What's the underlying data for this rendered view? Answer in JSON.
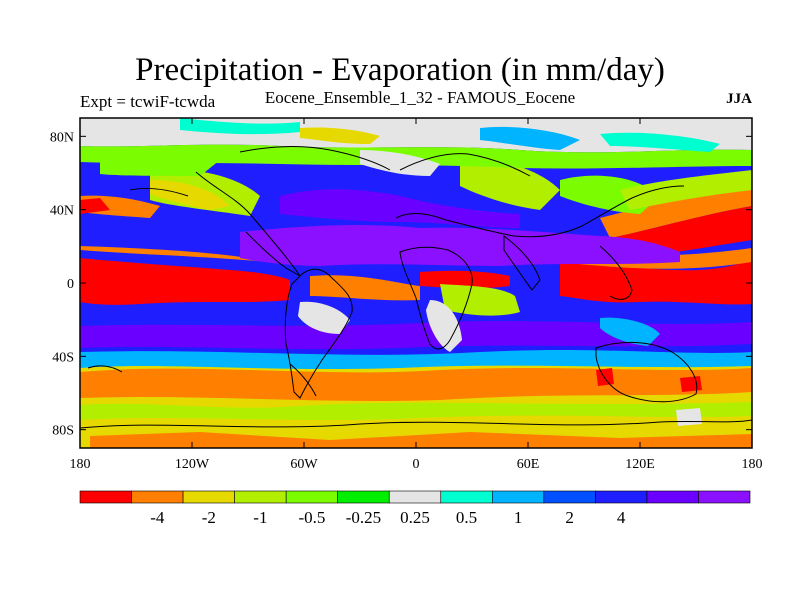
{
  "title": "Precipitation - Evaporation (in mm/day)",
  "subtitle_left": "Expt = tcwiF-tcwda",
  "subtitle_center": "Eocene_Ensemble_1_32 - FAMOUS_Eocene",
  "subtitle_right": "JJA",
  "map": {
    "projection": "cylindrical equidistant",
    "lon_range": [
      -180,
      180
    ],
    "lat_range": [
      -90,
      90
    ],
    "x_ticks": [
      {
        "lon": -180,
        "label": "180"
      },
      {
        "lon": -120,
        "label": "120W"
      },
      {
        "lon": -60,
        "label": "60W"
      },
      {
        "lon": 0,
        "label": "0"
      },
      {
        "lon": 60,
        "label": "60E"
      },
      {
        "lon": 120,
        "label": "120E"
      },
      {
        "lon": 180,
        "label": "180"
      }
    ],
    "y_ticks": [
      {
        "lat": 80,
        "label": "80N"
      },
      {
        "lat": 40,
        "label": "40N"
      },
      {
        "lat": 0,
        "label": "0"
      },
      {
        "lat": -40,
        "label": "40S"
      },
      {
        "lat": -80,
        "label": "80S"
      }
    ]
  },
  "colorbar": {
    "colors": [
      "#ff0000",
      "#ff7f00",
      "#e6d900",
      "#b2ee00",
      "#7cfc00",
      "#00ee00",
      "#e5e5e5",
      "#00ffd0",
      "#00b4ff",
      "#0050ff",
      "#1e1eff",
      "#6a00ff",
      "#8a10ff"
    ],
    "labels": [
      "-4",
      "-2",
      "-1",
      "-0.5",
      "-0.25",
      "0.25",
      "0.5",
      "1",
      "2",
      "4"
    ]
  },
  "colors": {
    "strong_negative": "#ff0000",
    "near_zero": "#e5e5e5",
    "strong_positive": "#8a10ff",
    "coastline": "#000000"
  }
}
